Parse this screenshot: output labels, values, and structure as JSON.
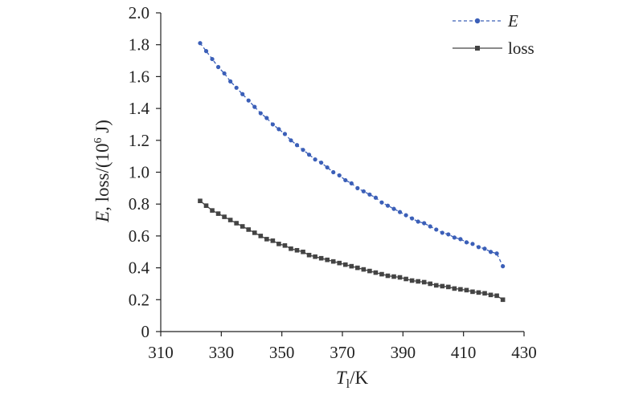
{
  "chart_data": {
    "type": "line",
    "xlabel": {
      "main": "T",
      "sub": "l",
      "unit": "/K"
    },
    "ylabel": {
      "parts": [
        {
          "text": "E",
          "italic": true
        },
        {
          "text": ", loss/(10"
        },
        {
          "text": "6",
          "sup": true
        },
        {
          "text": " J)"
        }
      ]
    },
    "xlim": [
      310,
      430
    ],
    "ylim": [
      0,
      2.0
    ],
    "x_ticks": [
      "310",
      "330",
      "350",
      "370",
      "390",
      "410",
      "430"
    ],
    "y_ticks": [
      "0",
      "0.2",
      "0.4",
      "0.6",
      "0.8",
      "1.0",
      "1.2",
      "1.4",
      "1.6",
      "1.8",
      "2.0"
    ],
    "legend_position": "top-right",
    "x": [
      323,
      325,
      327,
      329,
      331,
      333,
      335,
      337,
      339,
      341,
      343,
      345,
      347,
      349,
      351,
      353,
      355,
      357,
      359,
      361,
      363,
      365,
      367,
      369,
      371,
      373,
      375,
      377,
      379,
      381,
      383,
      385,
      387,
      389,
      391,
      393,
      395,
      397,
      399,
      401,
      403,
      405,
      407,
      409,
      411,
      413,
      415,
      417,
      419,
      421,
      423
    ],
    "series": [
      {
        "name": "E",
        "name_italic": true,
        "color": "#3b5fb8",
        "line_style": "dashed",
        "marker": "circle",
        "values": [
          1.81,
          1.76,
          1.71,
          1.66,
          1.62,
          1.57,
          1.53,
          1.49,
          1.45,
          1.41,
          1.37,
          1.34,
          1.3,
          1.27,
          1.24,
          1.2,
          1.17,
          1.14,
          1.11,
          1.08,
          1.06,
          1.03,
          1.0,
          0.98,
          0.95,
          0.93,
          0.9,
          0.88,
          0.86,
          0.84,
          0.81,
          0.79,
          0.77,
          0.75,
          0.73,
          0.71,
          0.69,
          0.68,
          0.66,
          0.64,
          0.62,
          0.61,
          0.59,
          0.58,
          0.56,
          0.55,
          0.53,
          0.52,
          0.5,
          0.49,
          0.41
        ]
      },
      {
        "name": "loss",
        "color": "#444444",
        "line_style": "solid",
        "marker": "square",
        "values": [
          0.82,
          0.79,
          0.76,
          0.74,
          0.72,
          0.7,
          0.68,
          0.66,
          0.64,
          0.62,
          0.6,
          0.58,
          0.57,
          0.55,
          0.54,
          0.52,
          0.51,
          0.5,
          0.48,
          0.47,
          0.46,
          0.45,
          0.44,
          0.43,
          0.42,
          0.41,
          0.4,
          0.39,
          0.38,
          0.37,
          0.36,
          0.35,
          0.345,
          0.34,
          0.33,
          0.32,
          0.315,
          0.31,
          0.3,
          0.29,
          0.285,
          0.28,
          0.27,
          0.265,
          0.26,
          0.25,
          0.245,
          0.24,
          0.23,
          0.225,
          0.2
        ]
      }
    ]
  }
}
